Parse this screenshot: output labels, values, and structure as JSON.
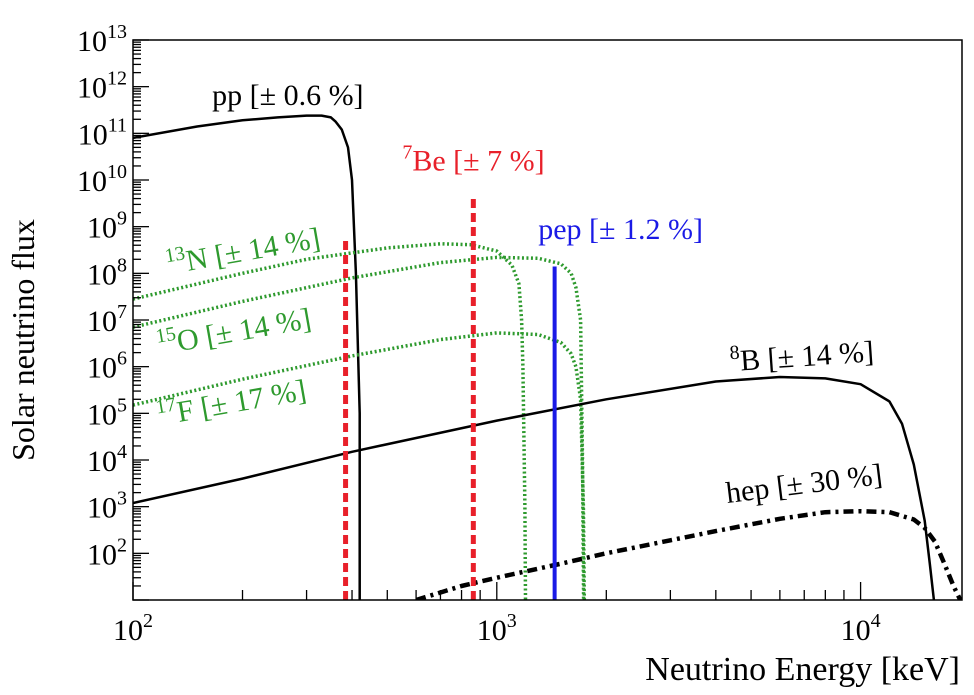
{
  "chart_data": {
    "type": "line",
    "xlabel": "Neutrino Energy [keV]",
    "ylabel": "Solar neutrino flux",
    "x_scale": "log",
    "y_scale": "log",
    "xlim": [
      100,
      19000
    ],
    "ylim": [
      10,
      10000000000000
    ],
    "grid": false,
    "x_ticks": [
      {
        "value": 100,
        "base": "10",
        "exp": "2"
      },
      {
        "value": 1000,
        "base": "10",
        "exp": "3"
      },
      {
        "value": 10000,
        "base": "10",
        "exp": "4"
      }
    ],
    "y_ticks": [
      {
        "value": 100,
        "base": "10",
        "exp": "2"
      },
      {
        "value": 1000,
        "base": "10",
        "exp": "3"
      },
      {
        "value": 10000,
        "base": "10",
        "exp": "4"
      },
      {
        "value": 100000,
        "base": "10",
        "exp": "5"
      },
      {
        "value": 1000000,
        "base": "10",
        "exp": "6"
      },
      {
        "value": 10000000,
        "base": "10",
        "exp": "7"
      },
      {
        "value": 100000000,
        "base": "10",
        "exp": "8"
      },
      {
        "value": 1000000000,
        "base": "10",
        "exp": "9"
      },
      {
        "value": 10000000000,
        "base": "10",
        "exp": "10"
      },
      {
        "value": 100000000000,
        "base": "10",
        "exp": "11"
      },
      {
        "value": 1000000000000,
        "base": "10",
        "exp": "12"
      },
      {
        "value": 10000000000000,
        "base": "10",
        "exp": "13"
      }
    ],
    "series": [
      {
        "name": "pp",
        "color": "#000000",
        "style": "solid",
        "x": [
          100,
          150,
          200,
          250,
          300,
          330,
          350,
          360,
          375,
          390,
          400,
          410,
          420,
          420
        ],
        "y": [
          80000000000,
          140000000000,
          190000000000,
          220000000000,
          240000000000,
          240000000000,
          220000000000,
          180000000000,
          120000000000,
          50000000000,
          10000000000,
          100000000,
          100000,
          10
        ]
      },
      {
        "name": "13N",
        "color": "#2e9a2e",
        "style": "dotted",
        "x": [
          100,
          200,
          300,
          500,
          700,
          850,
          1000,
          1100,
          1150,
          1170,
          1180,
          1195,
          1199
        ],
        "y": [
          28000000,
          100000000,
          200000000,
          350000000,
          430000000,
          410000000,
          300000000,
          150000000,
          60000000,
          10000000,
          1000000,
          1000,
          10
        ]
      },
      {
        "name": "15O",
        "color": "#2e9a2e",
        "style": "dotted",
        "x": [
          100,
          200,
          400,
          700,
          1000,
          1300,
          1500,
          1600,
          1650,
          1700,
          1720,
          1732
        ],
        "y": [
          7000000,
          25000000,
          80000000,
          170000000,
          220000000,
          210000000,
          160000000,
          100000000,
          50000000,
          10000000,
          10000,
          10
        ]
      },
      {
        "name": "17F",
        "color": "#2e9a2e",
        "style": "dotted",
        "x": [
          100,
          200,
          400,
          700,
          1000,
          1300,
          1500,
          1600,
          1650,
          1700,
          1730,
          1740
        ],
        "y": [
          150000,
          540000,
          1700000,
          3800000,
          5300000,
          4900000,
          3300000,
          1900000,
          1000000,
          200000,
          1000,
          10
        ]
      },
      {
        "name": "8B",
        "color": "#000000",
        "style": "solid",
        "x": [
          100,
          200,
          400,
          1000,
          2000,
          4000,
          6000,
          8000,
          10000,
          12000,
          13000,
          14000,
          15000,
          15500,
          15900
        ],
        "y": [
          1200,
          4000,
          15000,
          70000,
          200000,
          480000,
          600000,
          560000,
          420000,
          180000,
          60000,
          8000,
          500,
          60,
          10
        ]
      },
      {
        "name": "hep",
        "color": "#000000",
        "style": "dashdot",
        "x": [
          600,
          800,
          1000,
          1500,
          2000,
          3000,
          4000,
          6000,
          8000,
          10000,
          12000,
          14000,
          15000,
          16000,
          17000,
          18000,
          18800
        ],
        "y": [
          10,
          20,
          30,
          60,
          100,
          190,
          300,
          550,
          760,
          800,
          760,
          530,
          350,
          180,
          60,
          20,
          10
        ]
      }
    ],
    "lines": [
      {
        "name": "7Be_384",
        "color": "#e8202a",
        "style": "dashed",
        "x": 384,
        "y": 500000000
      },
      {
        "name": "7Be_862",
        "color": "#e8202a",
        "style": "dashed",
        "x": 862,
        "y": 4500000000
      },
      {
        "name": "pep",
        "color": "#1a1ae6",
        "style": "solid",
        "x": 1442,
        "y": 140000000
      }
    ],
    "annotations": [
      {
        "id": "pp",
        "super": "",
        "text": "pp [± 0.6 %]",
        "color": "#000000",
        "x": 165,
        "y": 400000000000,
        "rotate": 0
      },
      {
        "id": "be7",
        "super": "7",
        "text": "Be [± 7 %]",
        "color": "#e8202a",
        "x": 550,
        "y": 16000000000,
        "rotate": 0
      },
      {
        "id": "pep",
        "super": "",
        "text": "pep [± 1.2 %]",
        "color": "#1a1ae6",
        "x": 1300,
        "y": 550000000,
        "rotate": 0
      },
      {
        "id": "n13",
        "super": "13",
        "text": "N [± 14 %]",
        "color": "#2e9a2e",
        "x": 125,
        "y": 95000000,
        "rotate": -10
      },
      {
        "id": "o15",
        "super": "15",
        "text": "O [± 14 %]",
        "color": "#2e9a2e",
        "x": 118,
        "y": 1800000,
        "rotate": -10
      },
      {
        "id": "f17",
        "super": "17",
        "text": "F [± 17 %]",
        "color": "#2e9a2e",
        "x": 118,
        "y": 55000,
        "rotate": -10
      },
      {
        "id": "b8",
        "super": "8",
        "text": "B [± 14 %]",
        "color": "#000000",
        "x": 4400,
        "y": 800000,
        "rotate": -4
      },
      {
        "id": "hep",
        "super": "",
        "text": "hep [± 30 %]",
        "color": "#000000",
        "x": 4300,
        "y": 1200,
        "rotate": -7
      }
    ]
  }
}
